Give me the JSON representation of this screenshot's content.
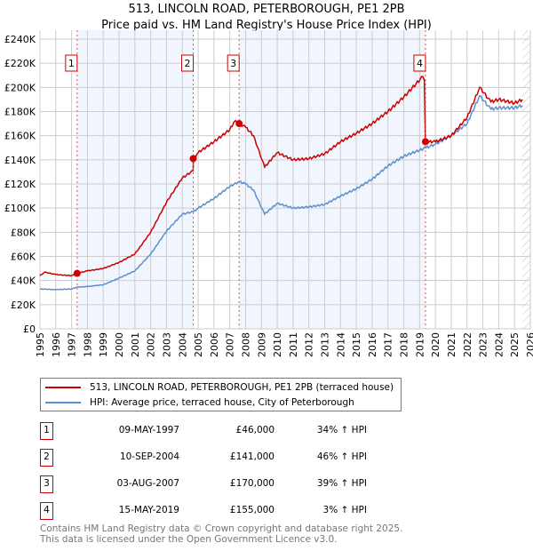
{
  "title": "513, LINCOLN ROAD, PETERBOROUGH, PE1 2PB",
  "subtitle": "Price paid vs. HM Land Registry's House Price Index (HPI)",
  "chart_data": {
    "type": "line",
    "xlim": [
      1995,
      2026
    ],
    "ylim": [
      0,
      240000
    ],
    "y_ticks": [
      {
        "v": 0,
        "label": "£0"
      },
      {
        "v": 20000,
        "label": "£20K"
      },
      {
        "v": 40000,
        "label": "£40K"
      },
      {
        "v": 60000,
        "label": "£60K"
      },
      {
        "v": 80000,
        "label": "£80K"
      },
      {
        "v": 100000,
        "label": "£100K"
      },
      {
        "v": 120000,
        "label": "£120K"
      },
      {
        "v": 140000,
        "label": "£140K"
      },
      {
        "v": 160000,
        "label": "£160K"
      },
      {
        "v": 180000,
        "label": "£180K"
      },
      {
        "v": 200000,
        "label": "£200K"
      },
      {
        "v": 220000,
        "label": "£220K"
      },
      {
        "v": 240000,
        "label": "£240K"
      }
    ],
    "x_ticks": [
      "1995",
      "1996",
      "1997",
      "1998",
      "1999",
      "2000",
      "2001",
      "2002",
      "2003",
      "2004",
      "2005",
      "2006",
      "2007",
      "2008",
      "2009",
      "2010",
      "2011",
      "2012",
      "2013",
      "2014",
      "2015",
      "2016",
      "2017",
      "2018",
      "2019",
      "2020",
      "2021",
      "2022",
      "2023",
      "2024",
      "2025",
      "2026"
    ],
    "grid": true,
    "shaded_ranges": [
      [
        1997.35,
        2004.69
      ],
      [
        2007.59,
        2019.37
      ]
    ],
    "hatched_from": 2025.5,
    "series": [
      {
        "name": "513, LINCOLN ROAD, PETERBOROUGH, PE1 2PB (terraced house)",
        "color": "#cc0000",
        "points": [
          [
            1995,
            44000
          ],
          [
            1995.3,
            47000
          ],
          [
            1996,
            45000
          ],
          [
            1997,
            44000
          ],
          [
            1997.35,
            46000
          ],
          [
            1998,
            48000
          ],
          [
            1999,
            50000
          ],
          [
            2000,
            55000
          ],
          [
            2001,
            62000
          ],
          [
            2002,
            80000
          ],
          [
            2003,
            105000
          ],
          [
            2004,
            125000
          ],
          [
            2004.68,
            131000
          ],
          [
            2004.7,
            141000
          ],
          [
            2005,
            146000
          ],
          [
            2006,
            155000
          ],
          [
            2007,
            165000
          ],
          [
            2007.3,
            172000
          ],
          [
            2007.6,
            170000
          ],
          [
            2008,
            167000
          ],
          [
            2008.5,
            160000
          ],
          [
            2009.2,
            134000
          ],
          [
            2010,
            146000
          ],
          [
            2011,
            140000
          ],
          [
            2012,
            141000
          ],
          [
            2013,
            145000
          ],
          [
            2014,
            155000
          ],
          [
            2015,
            162000
          ],
          [
            2016,
            170000
          ],
          [
            2017,
            180000
          ],
          [
            2018,
            192000
          ],
          [
            2019.2,
            209000
          ],
          [
            2019.3,
            206000
          ],
          [
            2019.37,
            155000
          ],
          [
            2020,
            155000
          ],
          [
            2021,
            160000
          ],
          [
            2022,
            175000
          ],
          [
            2022.8,
            200000
          ],
          [
            2023.5,
            188000
          ],
          [
            2024,
            190000
          ],
          [
            2025,
            187000
          ],
          [
            2025.5,
            190000
          ]
        ]
      },
      {
        "name": "HPI: Average price, terraced house, City of Peterborough",
        "color": "#5b8fd0",
        "points": [
          [
            1995,
            33000
          ],
          [
            1996,
            32500
          ],
          [
            1997,
            33000
          ],
          [
            1997.35,
            34500
          ],
          [
            1998,
            35000
          ],
          [
            1999,
            36500
          ],
          [
            2000,
            42000
          ],
          [
            2001,
            48000
          ],
          [
            2002,
            62000
          ],
          [
            2003,
            81000
          ],
          [
            2004,
            95000
          ],
          [
            2004.7,
            97000
          ],
          [
            2005,
            100000
          ],
          [
            2006,
            108000
          ],
          [
            2007,
            118000
          ],
          [
            2007.6,
            122000
          ],
          [
            2008,
            120000
          ],
          [
            2008.5,
            115000
          ],
          [
            2009.2,
            95000
          ],
          [
            2010,
            104000
          ],
          [
            2011,
            100000
          ],
          [
            2012,
            101000
          ],
          [
            2013,
            103000
          ],
          [
            2014,
            110000
          ],
          [
            2015,
            116000
          ],
          [
            2016,
            124000
          ],
          [
            2017,
            135000
          ],
          [
            2018,
            143000
          ],
          [
            2019,
            148000
          ],
          [
            2019.4,
            150000
          ],
          [
            2020,
            153000
          ],
          [
            2021,
            160000
          ],
          [
            2022,
            170000
          ],
          [
            2022.8,
            193000
          ],
          [
            2023.5,
            182000
          ],
          [
            2024,
            183000
          ],
          [
            2025,
            183000
          ],
          [
            2025.5,
            185000
          ]
        ]
      }
    ],
    "sales": [
      {
        "n": "1",
        "x": 1997.35,
        "price": 46000
      },
      {
        "n": "2",
        "x": 2004.69,
        "price": 141000
      },
      {
        "n": "3",
        "x": 2007.59,
        "price": 170000
      },
      {
        "n": "4",
        "x": 2019.37,
        "price": 155000
      }
    ]
  },
  "legend": {
    "red": "513, LINCOLN ROAD, PETERBOROUGH, PE1 2PB (terraced house)",
    "blue": "HPI: Average price, terraced house, City of Peterborough"
  },
  "transactions": [
    {
      "n": "1",
      "date": "09-MAY-1997",
      "price": "£46,000",
      "hpi": "34% ↑ HPI"
    },
    {
      "n": "2",
      "date": "10-SEP-2004",
      "price": "£141,000",
      "hpi": "46% ↑ HPI"
    },
    {
      "n": "3",
      "date": "03-AUG-2007",
      "price": "£170,000",
      "hpi": "39% ↑ HPI"
    },
    {
      "n": "4",
      "date": "15-MAY-2019",
      "price": "£155,000",
      "hpi": "3% ↑ HPI"
    }
  ],
  "footer": [
    "Contains HM Land Registry data © Crown copyright and database right 2025.",
    "This data is licensed under the Open Government Licence v3.0."
  ]
}
